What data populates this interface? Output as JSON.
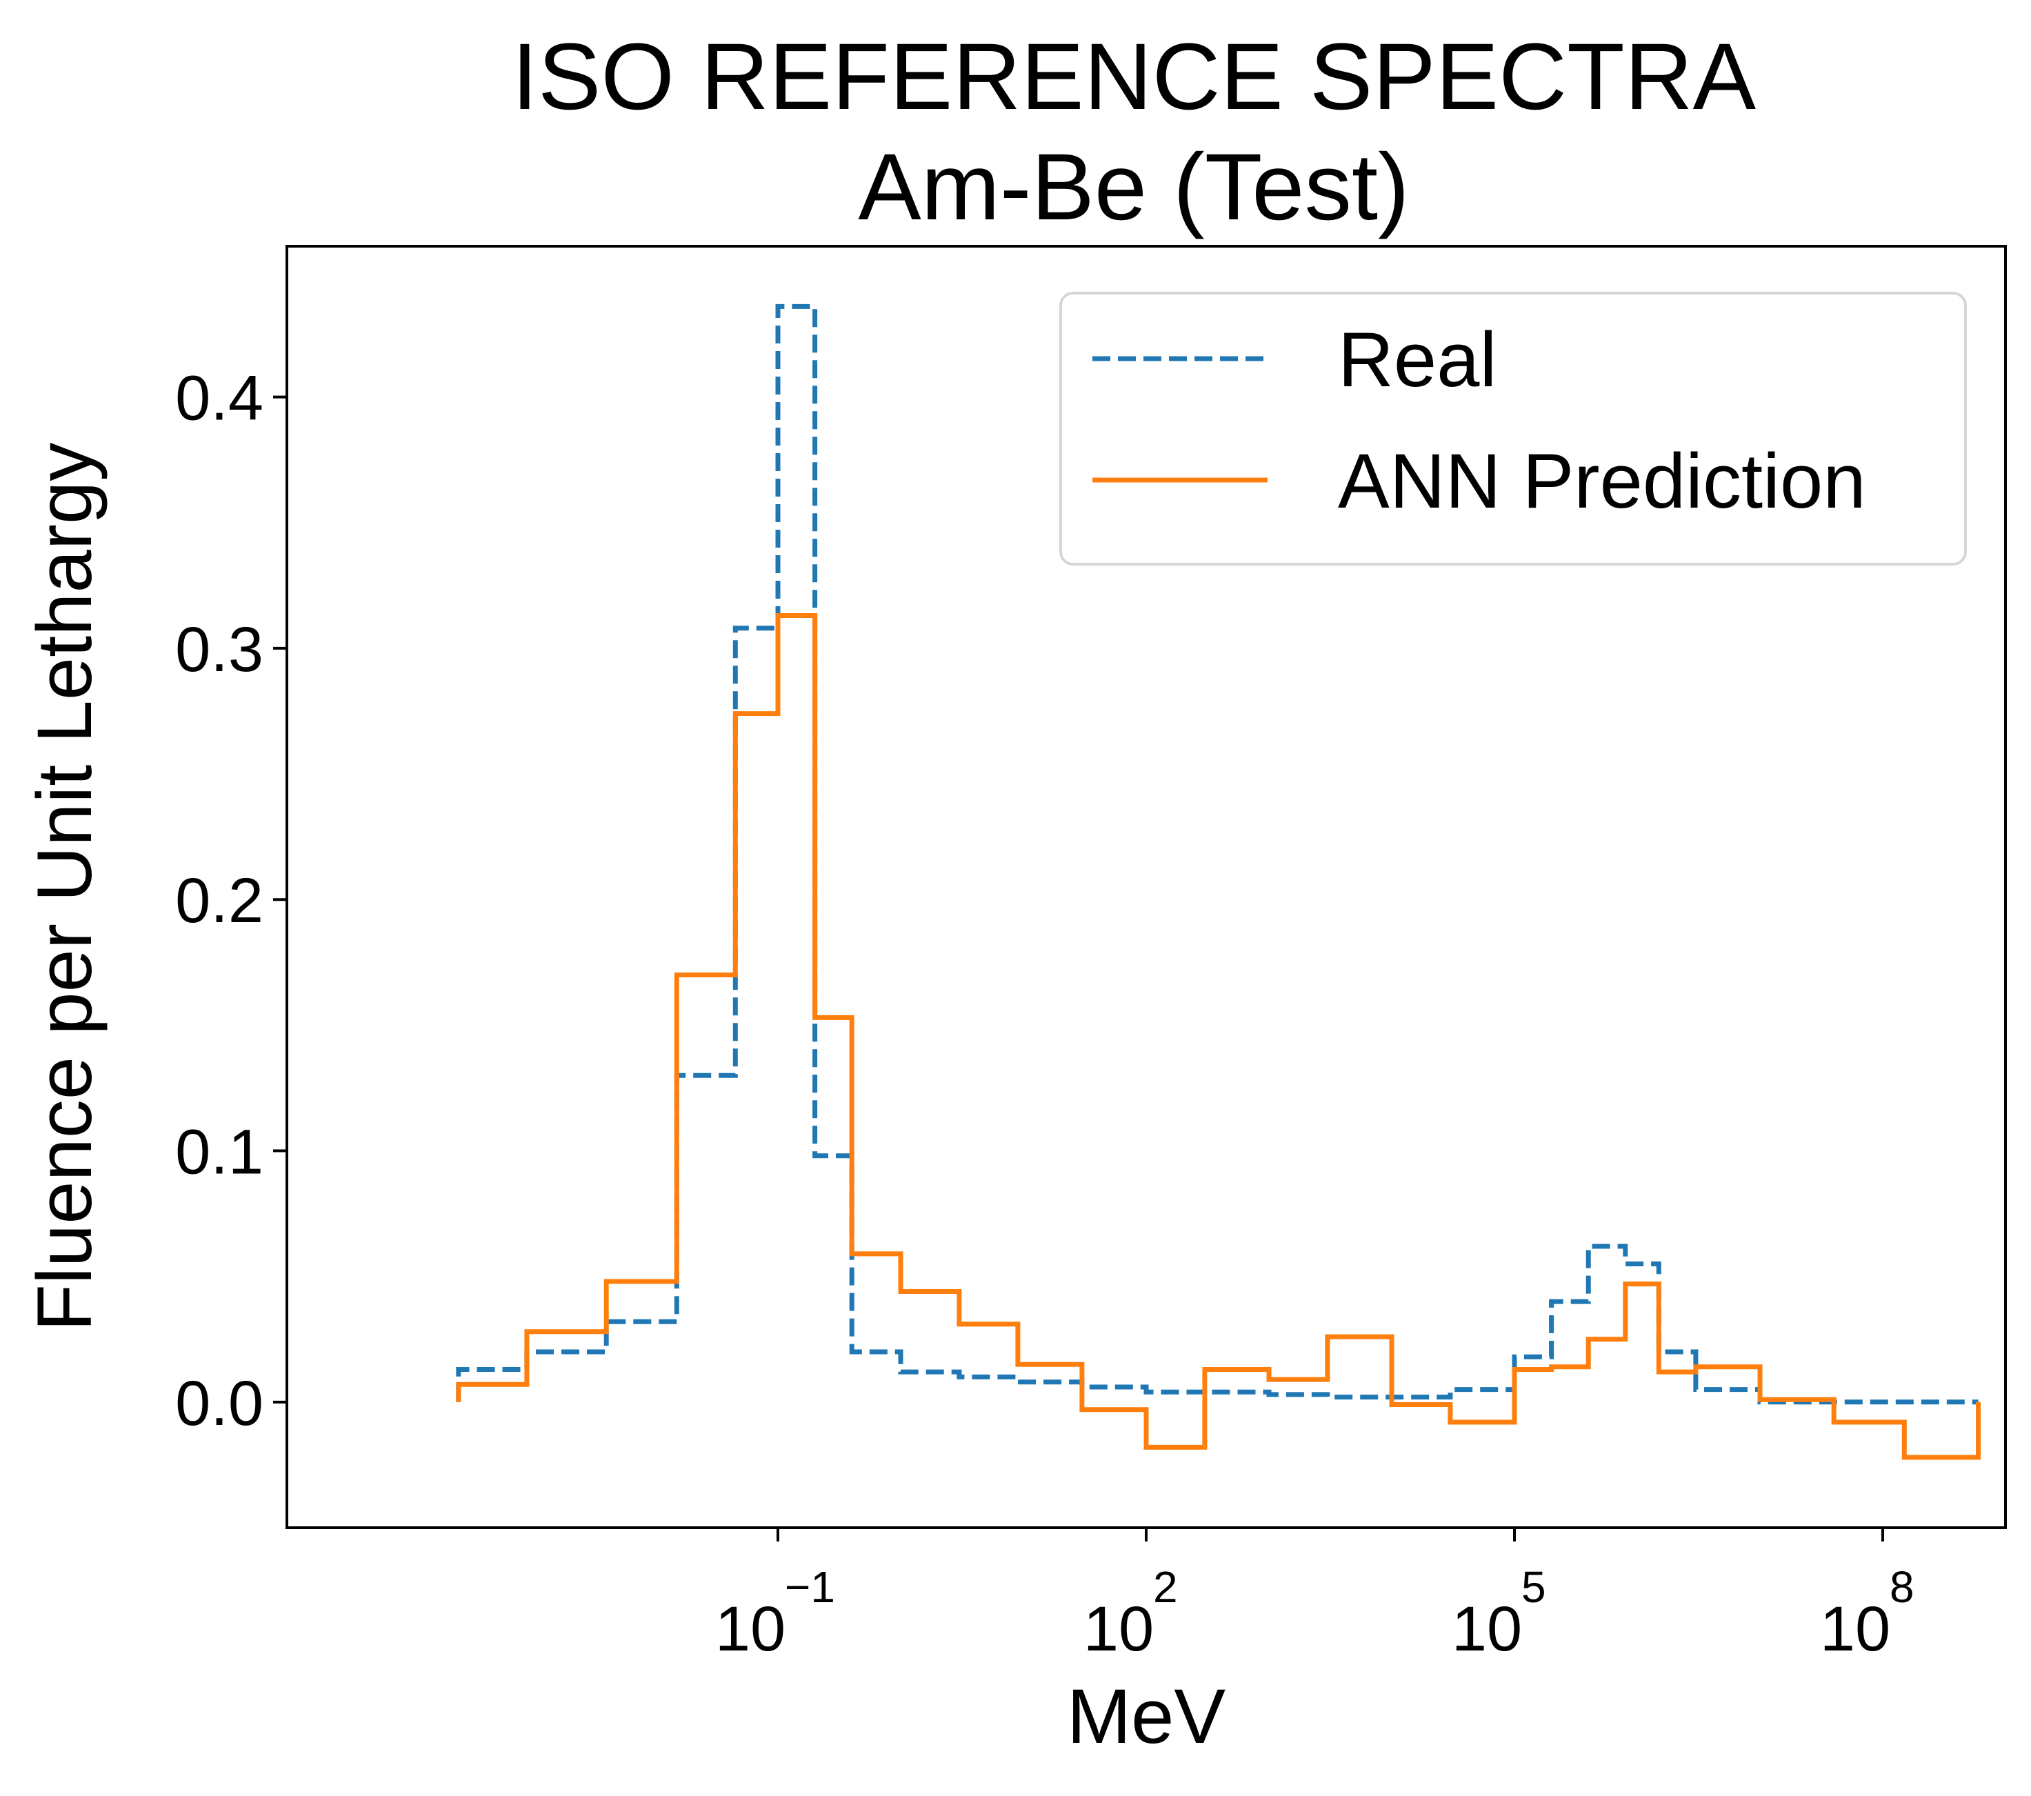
{
  "chart_data": {
    "type": "line",
    "title": "ISO REFERENCE SPECTRA",
    "subtitle": "Am-Be (Test)",
    "xlabel": "MeV",
    "ylabel": "Fluence per Unit Lethargy",
    "xscale": "log",
    "xlim": [
      1e-05,
      1000000000.0
    ],
    "ylim": [
      -0.05,
      0.46
    ],
    "y_ticks": [
      "0.0",
      "0.1",
      "0.2",
      "0.3",
      "0.4"
    ],
    "y_tick_values": [
      0.0,
      0.1,
      0.2,
      0.3,
      0.4
    ],
    "x_ticks": [
      {
        "base": "10",
        "exp": "−1",
        "value": 0.1
      },
      {
        "base": "10",
        "exp": "2",
        "value": 100
      },
      {
        "base": "10",
        "exp": "5",
        "value": 100000
      },
      {
        "base": "10",
        "exp": "8",
        "value": 100000000
      }
    ],
    "legend_position": "top-right",
    "grid": false,
    "series": [
      {
        "name": "Real",
        "color": "#1f77b4",
        "style": "dashed",
        "edges": [
          0.00025,
          0.0009,
          0.004,
          0.015,
          0.045,
          0.1,
          0.2,
          0.4,
          1,
          3,
          9,
          30,
          100,
          300,
          1000,
          3000,
          10000,
          30000,
          100000,
          200000,
          400000,
          800000,
          1500000,
          3000000,
          10000000,
          40000000,
          150000000,
          600000000
        ],
        "values": [
          0.013,
          0.02,
          0.032,
          0.13,
          0.308,
          0.436,
          0.098,
          0.02,
          0.012,
          0.01,
          0.008,
          0.006,
          0.004,
          0.004,
          0.003,
          0.002,
          0.002,
          0.005,
          0.018,
          0.04,
          0.062,
          0.055,
          0.02,
          0.005,
          0.0,
          0.0,
          0.0
        ]
      },
      {
        "name": "ANN Prediction",
        "color": "#ff7f0e",
        "style": "solid",
        "edges": [
          0.00025,
          0.0009,
          0.004,
          0.015,
          0.045,
          0.1,
          0.2,
          0.4,
          1,
          3,
          9,
          30,
          100,
          300,
          1000,
          3000,
          10000,
          30000,
          100000,
          200000,
          400000,
          800000,
          1500000,
          3000000,
          10000000,
          40000000,
          150000000,
          600000000
        ],
        "values": [
          0.007,
          0.028,
          0.048,
          0.17,
          0.274,
          0.313,
          0.153,
          0.059,
          0.044,
          0.031,
          0.015,
          -0.003,
          -0.018,
          0.013,
          0.009,
          0.026,
          -0.001,
          -0.008,
          0.013,
          0.014,
          0.025,
          0.047,
          0.012,
          0.014,
          0.001,
          -0.008,
          -0.022
        ]
      }
    ]
  }
}
